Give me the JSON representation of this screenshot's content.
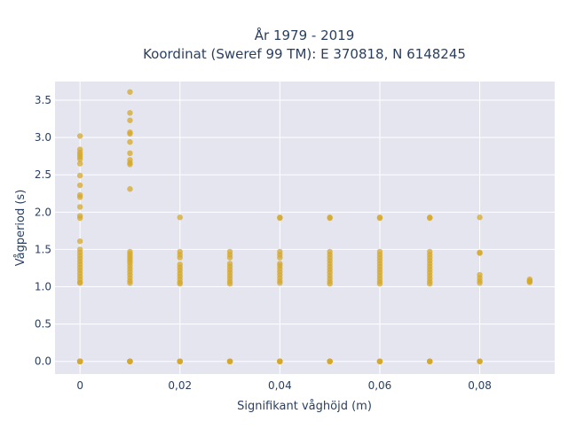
{
  "chart_data": {
    "type": "scatter",
    "title_line1": "År 1979 - 2019",
    "title_line2": "Koordinat (Sweref 99 TM): E 370818, N 6148245",
    "xlabel": "Signifikant våghöjd (m)",
    "ylabel": "Vågperiod (s)",
    "xlim": [
      -0.005,
      0.095
    ],
    "ylim": [
      -0.17,
      3.75
    ],
    "grid": true,
    "legend": "none",
    "x_ticks": [
      0,
      0.02,
      0.04,
      0.06,
      0.08
    ],
    "x_tick_labels": [
      "0",
      "0,02",
      "0,04",
      "0,06",
      "0,08"
    ],
    "y_ticks": [
      0,
      0.5,
      1,
      1.5,
      2,
      2.5,
      3,
      3.5
    ],
    "y_tick_labels": [
      "0.0",
      "0.5",
      "1.0",
      "1.5",
      "2.0",
      "2.5",
      "3.0",
      "3.5"
    ],
    "colors": {
      "marker": "#d4a82a",
      "plot_bg": "#e5e5f0",
      "grid": "#ffffff",
      "text": "#2a3f5f"
    },
    "x": [
      0,
      0,
      0,
      0,
      0,
      0,
      0,
      0,
      0,
      0,
      0,
      0,
      0,
      0,
      0,
      0,
      0,
      0,
      0,
      0,
      0,
      0,
      0,
      0,
      0,
      0,
      0,
      0,
      0,
      0,
      0,
      0,
      0,
      0,
      0,
      0,
      0,
      0.01,
      0.01,
      0.01,
      0.01,
      0.01,
      0.01,
      0.01,
      0.01,
      0.01,
      0.01,
      0.01,
      0.01,
      0.01,
      0.01,
      0.01,
      0.01,
      0.01,
      0.01,
      0.01,
      0.01,
      0.01,
      0.01,
      0.01,
      0.01,
      0.01,
      0.01,
      0.01,
      0.01,
      0.01,
      0.01,
      0.01,
      0.02,
      0.02,
      0.02,
      0.02,
      0.02,
      0.02,
      0.02,
      0.02,
      0.02,
      0.02,
      0.02,
      0.02,
      0.02,
      0.02,
      0.02,
      0.02,
      0.02,
      0.03,
      0.03,
      0.03,
      0.03,
      0.03,
      0.03,
      0.03,
      0.03,
      0.03,
      0.03,
      0.03,
      0.03,
      0.03,
      0.03,
      0.03,
      0.03,
      0.04,
      0.04,
      0.04,
      0.04,
      0.04,
      0.04,
      0.04,
      0.04,
      0.04,
      0.04,
      0.04,
      0.04,
      0.04,
      0.04,
      0.04,
      0.04,
      0.04,
      0.04,
      0.05,
      0.05,
      0.05,
      0.05,
      0.05,
      0.05,
      0.05,
      0.05,
      0.05,
      0.05,
      0.05,
      0.05,
      0.05,
      0.05,
      0.05,
      0.05,
      0.05,
      0.05,
      0.06,
      0.06,
      0.06,
      0.06,
      0.06,
      0.06,
      0.06,
      0.06,
      0.06,
      0.06,
      0.06,
      0.06,
      0.06,
      0.06,
      0.06,
      0.06,
      0.06,
      0.06,
      0.07,
      0.07,
      0.07,
      0.07,
      0.07,
      0.07,
      0.07,
      0.07,
      0.07,
      0.07,
      0.07,
      0.07,
      0.07,
      0.07,
      0.07,
      0.07,
      0.07,
      0.07,
      0.08,
      0.08,
      0.08,
      0.08,
      0.08,
      0.08,
      0.08,
      0.08,
      0.08,
      0.08,
      0.09,
      0.09,
      0.09,
      0.09
    ],
    "y": [
      3.02,
      2.84,
      2.8,
      2.77,
      2.74,
      2.71,
      2.65,
      2.49,
      2.36,
      2.23,
      2.2,
      2.07,
      1.95,
      1.92,
      1.61,
      1.5,
      1.46,
      1.42,
      1.38,
      1.34,
      1.3,
      1.26,
      1.22,
      1.18,
      1.14,
      1.1,
      1.06,
      1.05,
      0,
      0,
      0,
      0,
      0,
      0,
      0,
      0,
      0,
      3.61,
      3.33,
      3.23,
      3.07,
      3.05,
      2.94,
      2.79,
      2.7,
      2.66,
      2.64,
      2.31,
      1.47,
      1.44,
      1.41,
      1.38,
      1.35,
      1.32,
      1.28,
      1.24,
      1.2,
      1.16,
      1.12,
      1.08,
      1.05,
      0,
      0,
      0,
      0,
      0,
      0,
      0,
      1.93,
      1.47,
      1.43,
      1.39,
      1.3,
      1.26,
      1.22,
      1.18,
      1.14,
      1.1,
      1.06,
      1.04,
      0,
      0,
      0,
      0,
      0,
      1.47,
      1.43,
      1.39,
      1.31,
      1.27,
      1.23,
      1.19,
      1.15,
      1.11,
      1.07,
      1.04,
      0,
      0,
      0,
      0,
      0,
      1.93,
      1.92,
      1.47,
      1.43,
      1.39,
      1.31,
      1.28,
      1.24,
      1.2,
      1.16,
      1.12,
      1.08,
      1.05,
      0,
      0,
      0,
      0,
      0,
      1.93,
      1.92,
      1.47,
      1.43,
      1.39,
      1.35,
      1.31,
      1.27,
      1.23,
      1.19,
      1.15,
      1.11,
      1.07,
      1.04,
      0,
      0,
      0,
      0,
      1.93,
      1.92,
      1.47,
      1.43,
      1.39,
      1.35,
      1.31,
      1.27,
      1.23,
      1.19,
      1.15,
      1.11,
      1.07,
      1.04,
      0,
      0,
      0,
      0,
      1.93,
      1.92,
      1.47,
      1.43,
      1.39,
      1.35,
      1.31,
      1.27,
      1.23,
      1.19,
      1.15,
      1.11,
      1.07,
      1.04,
      0,
      0,
      0,
      0,
      1.93,
      1.46,
      1.45,
      1.16,
      1.12,
      1.08,
      1.05,
      0,
      0,
      0,
      1.1,
      1.08,
      1.07,
      1.06
    ]
  }
}
